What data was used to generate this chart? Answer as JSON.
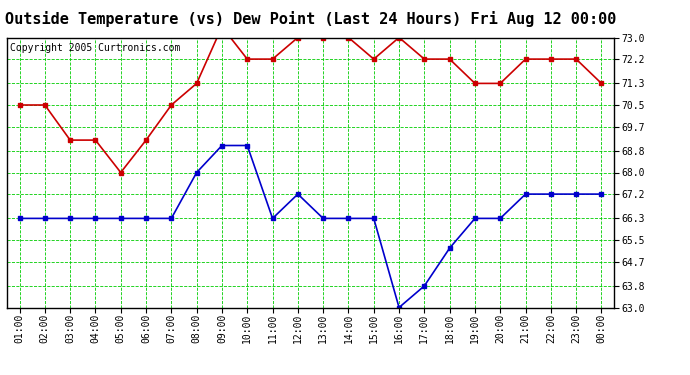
{
  "title": "Outside Temperature (vs) Dew Point (Last 24 Hours) Fri Aug 12 00:00",
  "copyright": "Copyright 2005 Curtronics.com",
  "x_labels": [
    "01:00",
    "02:00",
    "03:00",
    "04:00",
    "05:00",
    "06:00",
    "07:00",
    "08:00",
    "09:00",
    "10:00",
    "11:00",
    "12:00",
    "13:00",
    "14:00",
    "15:00",
    "16:00",
    "17:00",
    "18:00",
    "19:00",
    "20:00",
    "21:00",
    "22:00",
    "23:00",
    "00:00"
  ],
  "temp_values": [
    70.5,
    70.5,
    69.2,
    69.2,
    68.0,
    69.2,
    70.5,
    71.3,
    73.4,
    72.2,
    72.2,
    73.0,
    73.0,
    73.0,
    72.2,
    73.0,
    72.2,
    72.2,
    71.3,
    71.3,
    72.2,
    72.2,
    72.2,
    71.3
  ],
  "dew_values": [
    66.3,
    66.3,
    66.3,
    66.3,
    66.3,
    66.3,
    66.3,
    68.0,
    69.0,
    69.0,
    66.3,
    67.2,
    66.3,
    66.3,
    66.3,
    63.0,
    63.8,
    65.2,
    66.3,
    66.3,
    67.2,
    67.2,
    67.2,
    67.2
  ],
  "temp_color": "#cc0000",
  "dew_color": "#0000cc",
  "bg_color": "#ffffff",
  "plot_bg_color": "#ffffff",
  "grid_color": "#00cc00",
  "ylim_min": 63.0,
  "ylim_max": 73.0,
  "yticks": [
    63.0,
    63.8,
    64.7,
    65.5,
    66.3,
    67.2,
    68.0,
    68.8,
    69.7,
    70.5,
    71.3,
    72.2,
    73.0
  ],
  "title_fontsize": 11,
  "copyright_fontsize": 7,
  "tick_fontsize": 7,
  "marker": "s",
  "marker_size": 2.5,
  "line_width": 1.2
}
